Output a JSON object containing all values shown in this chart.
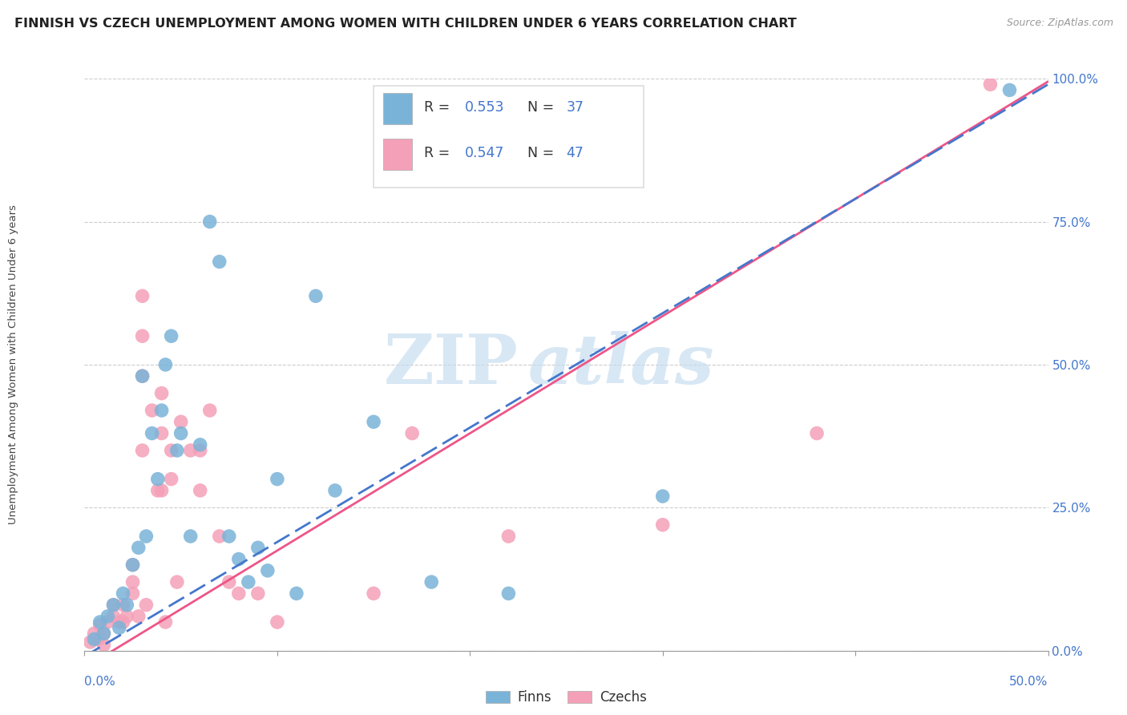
{
  "title": "FINNISH VS CZECH UNEMPLOYMENT AMONG WOMEN WITH CHILDREN UNDER 6 YEARS CORRELATION CHART",
  "source": "Source: ZipAtlas.com",
  "ylabel": "Unemployment Among Women with Children Under 6 years",
  "legend_label_finns": "Finns",
  "legend_label_czechs": "Czechs",
  "finns_color": "#7ab3d8",
  "czechs_color": "#f4a0b8",
  "trend_finns_color": "#4477cc",
  "trend_czechs_color": "#ee5588",
  "watermark_zip": "ZIP",
  "watermark_atlas": "atlas",
  "finns_scatter_x": [
    0.005,
    0.008,
    0.01,
    0.012,
    0.015,
    0.018,
    0.02,
    0.022,
    0.025,
    0.028,
    0.03,
    0.032,
    0.035,
    0.038,
    0.04,
    0.042,
    0.045,
    0.048,
    0.05,
    0.055,
    0.06,
    0.065,
    0.07,
    0.075,
    0.08,
    0.085,
    0.09,
    0.095,
    0.1,
    0.11,
    0.12,
    0.13,
    0.15,
    0.18,
    0.22,
    0.3,
    0.48
  ],
  "finns_scatter_y": [
    0.02,
    0.05,
    0.03,
    0.06,
    0.08,
    0.04,
    0.1,
    0.08,
    0.15,
    0.18,
    0.48,
    0.2,
    0.38,
    0.3,
    0.42,
    0.5,
    0.55,
    0.35,
    0.38,
    0.2,
    0.36,
    0.75,
    0.68,
    0.2,
    0.16,
    0.12,
    0.18,
    0.14,
    0.3,
    0.1,
    0.62,
    0.28,
    0.4,
    0.12,
    0.1,
    0.27,
    0.98
  ],
  "czechs_scatter_x": [
    0.003,
    0.005,
    0.007,
    0.008,
    0.01,
    0.01,
    0.012,
    0.015,
    0.015,
    0.018,
    0.02,
    0.02,
    0.022,
    0.025,
    0.025,
    0.025,
    0.028,
    0.03,
    0.03,
    0.03,
    0.03,
    0.032,
    0.035,
    0.038,
    0.04,
    0.04,
    0.04,
    0.042,
    0.045,
    0.045,
    0.048,
    0.05,
    0.055,
    0.06,
    0.06,
    0.065,
    0.07,
    0.075,
    0.08,
    0.09,
    0.1,
    0.15,
    0.17,
    0.22,
    0.3,
    0.38,
    0.47
  ],
  "czechs_scatter_y": [
    0.015,
    0.03,
    0.02,
    0.045,
    0.01,
    0.03,
    0.05,
    0.06,
    0.08,
    0.05,
    0.05,
    0.08,
    0.06,
    0.12,
    0.1,
    0.15,
    0.06,
    0.62,
    0.55,
    0.48,
    0.35,
    0.08,
    0.42,
    0.28,
    0.45,
    0.38,
    0.28,
    0.05,
    0.35,
    0.3,
    0.12,
    0.4,
    0.35,
    0.35,
    0.28,
    0.42,
    0.2,
    0.12,
    0.1,
    0.1,
    0.05,
    0.1,
    0.38,
    0.2,
    0.22,
    0.38,
    0.99
  ],
  "xlim": [
    0.0,
    0.5
  ],
  "ylim": [
    0.0,
    1.0
  ],
  "yticks": [
    0.0,
    0.25,
    0.5,
    0.75,
    1.0
  ],
  "ytick_labels": [
    "0.0%",
    "25.0%",
    "50.0%",
    "75.0%",
    "100.0%"
  ],
  "xtick_positions": [
    0.0,
    0.1,
    0.2,
    0.3,
    0.4,
    0.5
  ],
  "finn_trend_slope": 2.0,
  "finn_trend_intercept": -0.01,
  "czech_trend_slope": 2.05,
  "czech_trend_intercept": -0.03,
  "title_fontsize": 11.5,
  "source_fontsize": 9,
  "axis_label_fontsize": 9.5,
  "tick_fontsize": 11,
  "legend_fontsize": 12,
  "blue_color": "#4477cc",
  "pink_color": "#ee5588",
  "axis_tick_color": "#4477cc",
  "background_color": "#ffffff",
  "grid_color": "#cccccc",
  "scatter_size": 160
}
